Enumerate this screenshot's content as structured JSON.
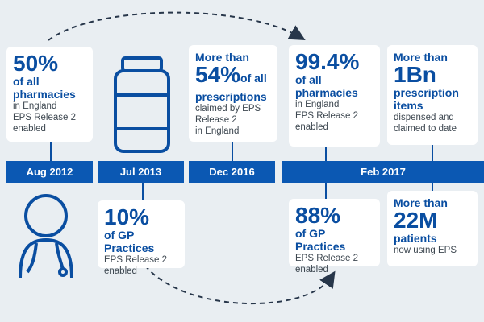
{
  "colors": {
    "brand_blue": "#0a4ea1",
    "bar_blue": "#0b58b3",
    "background": "#e9eef2",
    "body_text": "#3d4750"
  },
  "icons": [
    "pill-bottle-icon",
    "doctor-icon",
    "dashed-arc-arrow"
  ],
  "dates": [
    "Aug 2012",
    "Jul 2013",
    "Dec 2016",
    "Feb 2017"
  ],
  "card_aug2012": {
    "big": "50%",
    "mid": "of all pharmacies",
    "small_1": "in England",
    "small_2": "EPS Release 2",
    "small_3": "enabled"
  },
  "card_dec2016": {
    "line1": "More than",
    "big": "54%",
    "big_tail": "of all",
    "mid": "prescriptions",
    "small_1": "claimed by EPS",
    "small_2": "Release 2",
    "small_3": "in England"
  },
  "card_feb2017_pharm": {
    "big": "99.4%",
    "mid": "of all pharmacies",
    "small_1": "in England",
    "small_2": "EPS Release 2",
    "small_3": "enabled"
  },
  "card_feb2017_items": {
    "line1": "More than",
    "big": "1Bn",
    "mid": "prescription items",
    "small_1": "dispensed and",
    "small_2": "claimed to date"
  },
  "card_jul2013_gp": {
    "big": "10%",
    "mid": "of GP Practices",
    "small_1": "EPS Release 2",
    "small_2": "enabled"
  },
  "card_feb2017_gp": {
    "big": "88%",
    "mid": "of GP Practices",
    "small_1": "EPS Release 2",
    "small_2": "enabled"
  },
  "card_feb2017_patients": {
    "line1": "More than",
    "big": "22M",
    "mid": "patients",
    "small_1": "now using EPS"
  }
}
